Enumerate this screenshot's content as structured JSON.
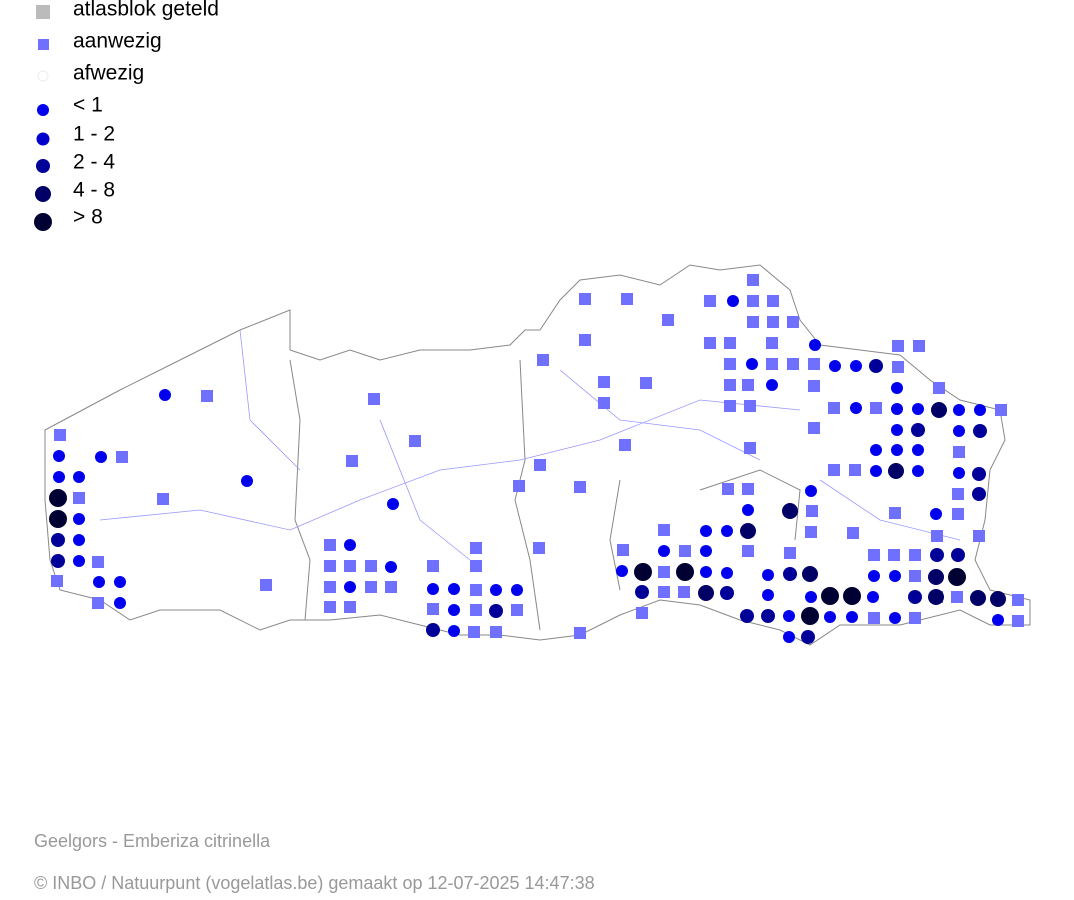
{
  "legend": {
    "items": [
      "atlasblok geteld",
      "aanwezig",
      "afwezig",
      "< 1",
      "1 - 2",
      "2 - 4",
      "4 - 8",
      "> 8"
    ]
  },
  "caption": "Geelgors - Emberiza citrinella",
  "copyright": "© INBO / Natuurpunt (vogelatlas.be) gemaakt op 12-07-2025 14:47:38"
}
